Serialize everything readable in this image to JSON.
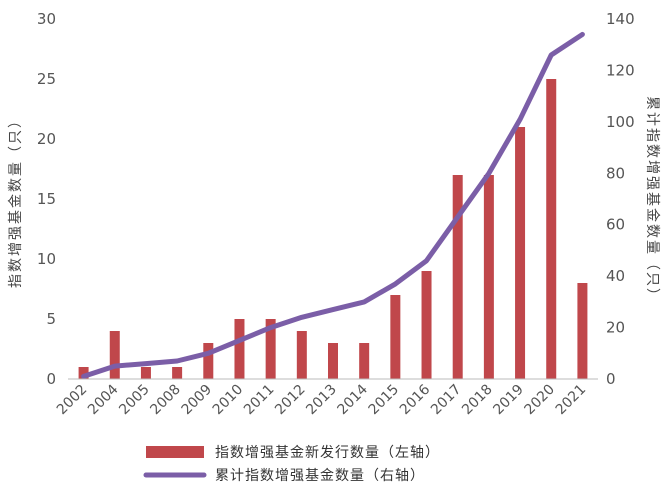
{
  "chart_data": {
    "type": "bar+line",
    "categories": [
      "2002",
      "2004",
      "2005",
      "2008",
      "2009",
      "2010",
      "2011",
      "2012",
      "2013",
      "2014",
      "2015",
      "2016",
      "2017",
      "2018",
      "2019",
      "2020",
      "2021"
    ],
    "series": [
      {
        "name": "指数增强基金新发行数量（左轴）",
        "type": "bar",
        "axis": "left",
        "color": "#c0474b",
        "values": [
          1,
          4,
          1,
          1,
          3,
          5,
          5,
          4,
          3,
          3,
          7,
          9,
          17,
          17,
          21,
          25,
          8
        ]
      },
      {
        "name": "累计指数增强基金数量（右轴）",
        "type": "line",
        "axis": "right",
        "color": "#7b5ea7",
        "values": [
          1,
          5,
          6,
          7,
          10,
          15,
          20,
          24,
          27,
          30,
          37,
          46,
          63,
          80,
          101,
          126,
          134
        ]
      }
    ],
    "y_left": {
      "label": "指数增强基金数量（只）",
      "lim": [
        0,
        30
      ],
      "ticks": [
        0,
        5,
        10,
        15,
        20,
        25,
        30
      ]
    },
    "y_right": {
      "label": "累计指数增强基金数量（只）",
      "lim": [
        0,
        140
      ],
      "ticks": [
        0,
        20,
        40,
        60,
        80,
        100,
        120,
        140
      ]
    },
    "legend": {
      "placement": "bottom"
    }
  }
}
